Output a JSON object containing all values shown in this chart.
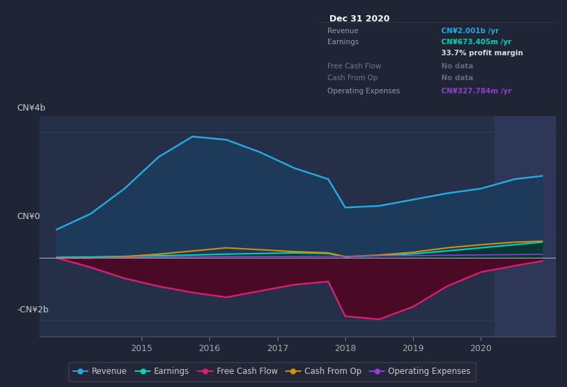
{
  "background_color": "#1f2535",
  "plot_bg_color": "#243048",
  "title_box_bg": "#0a0c14",
  "title_box_border": "#333344",
  "x_years": [
    2013.75,
    2014.25,
    2014.75,
    2015.25,
    2015.75,
    2016.25,
    2016.75,
    2017.25,
    2017.75,
    2018.0,
    2018.5,
    2019.0,
    2019.5,
    2020.0,
    2020.5,
    2020.9
  ],
  "revenue": [
    0.9,
    1.4,
    2.2,
    3.2,
    3.85,
    3.75,
    3.35,
    2.85,
    2.5,
    1.6,
    1.65,
    1.85,
    2.05,
    2.2,
    2.5,
    2.6
  ],
  "earnings": [
    0.02,
    0.03,
    0.05,
    0.07,
    0.09,
    0.12,
    0.14,
    0.16,
    0.14,
    0.04,
    0.07,
    0.13,
    0.22,
    0.32,
    0.42,
    0.5
  ],
  "free_cash_flow": [
    0.0,
    -0.3,
    -0.65,
    -0.9,
    -1.1,
    -1.25,
    -1.05,
    -0.85,
    -0.75,
    -1.85,
    -1.95,
    -1.55,
    -0.9,
    -0.45,
    -0.25,
    -0.1
  ],
  "cash_from_op": [
    0.0,
    0.0,
    0.04,
    0.12,
    0.22,
    0.32,
    0.26,
    0.2,
    0.16,
    0.04,
    0.09,
    0.18,
    0.32,
    0.42,
    0.5,
    0.53
  ],
  "operating_expenses": [
    0.0,
    0.0,
    0.015,
    0.025,
    0.035,
    0.045,
    0.045,
    0.045,
    0.055,
    0.055,
    0.065,
    0.075,
    0.085,
    0.095,
    0.105,
    0.115
  ],
  "revenue_color": "#29a8e0",
  "revenue_fill": "#1e3a5a",
  "earnings_color": "#00d4b8",
  "earnings_fill": "#0a3535",
  "free_cash_flow_color": "#d42070",
  "free_cash_flow_fill": "#4a0a25",
  "cash_from_op_color": "#d4900a",
  "operating_expenses_color": "#9040d0",
  "ylim": [
    -2.5,
    4.5
  ],
  "ytick_positions": [
    -2.0,
    0.0,
    4.0
  ],
  "ytick_labels": [
    "-CN¥2b",
    "CN¥0",
    "CN¥4b"
  ],
  "xlim_left": 2013.5,
  "xlim_right": 2021.1,
  "xticks": [
    2015,
    2016,
    2017,
    2018,
    2019,
    2020
  ],
  "highlight_x_start": 2020.2,
  "legend": [
    {
      "label": "Revenue",
      "color": "#29a8e0"
    },
    {
      "label": "Earnings",
      "color": "#00d4b8"
    },
    {
      "label": "Free Cash Flow",
      "color": "#d42070"
    },
    {
      "label": "Cash From Op",
      "color": "#d4900a"
    },
    {
      "label": "Operating Expenses",
      "color": "#9040d0"
    }
  ],
  "tooltip": {
    "date": "Dec 31 2020",
    "rows": [
      {
        "label": "Revenue",
        "value": "CN¥2.001b /yr",
        "value_color": "#29a8e0",
        "dim": false
      },
      {
        "label": "Earnings",
        "value": "CN¥673.405m /yr",
        "value_color": "#00d4b8",
        "dim": false
      },
      {
        "label": "",
        "value": "33.7% profit margin",
        "value_color": "#dddddd",
        "dim": false
      },
      {
        "label": "Free Cash Flow",
        "value": "No data",
        "value_color": "#666677",
        "dim": true
      },
      {
        "label": "Cash From Op",
        "value": "No data",
        "value_color": "#666677",
        "dim": true
      },
      {
        "label": "Operating Expenses",
        "value": "CN¥327.784m /yr",
        "value_color": "#9040d0",
        "dim": false
      }
    ]
  }
}
